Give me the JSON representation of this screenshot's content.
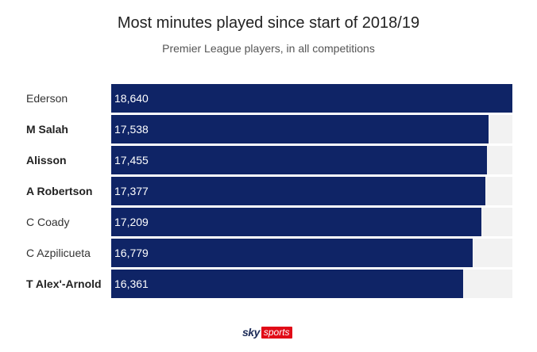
{
  "chart_data": {
    "type": "bar",
    "orientation": "horizontal",
    "title": "Most minutes played since start of 2018/19",
    "subtitle": "Premier League players, in all competitions",
    "categories": [
      "Ederson",
      "M Salah",
      "Alisson",
      "A Robertson",
      "C Coady",
      "C Azpilicueta",
      "T Alex'-Arnold"
    ],
    "values": [
      18640,
      17538,
      17455,
      17377,
      17209,
      16779,
      16361
    ],
    "value_labels": [
      "18,640",
      "17,538",
      "17,455",
      "17,377",
      "17,209",
      "16,779",
      "16,361"
    ],
    "bold_categories": [
      false,
      true,
      true,
      true,
      false,
      false,
      true
    ],
    "xlim": [
      0,
      18640
    ],
    "grid": false,
    "bar_color": "#0f2466",
    "track_color": "#f2f2f2"
  },
  "branding": {
    "logo_sky": "sky",
    "logo_sports": "sports"
  }
}
